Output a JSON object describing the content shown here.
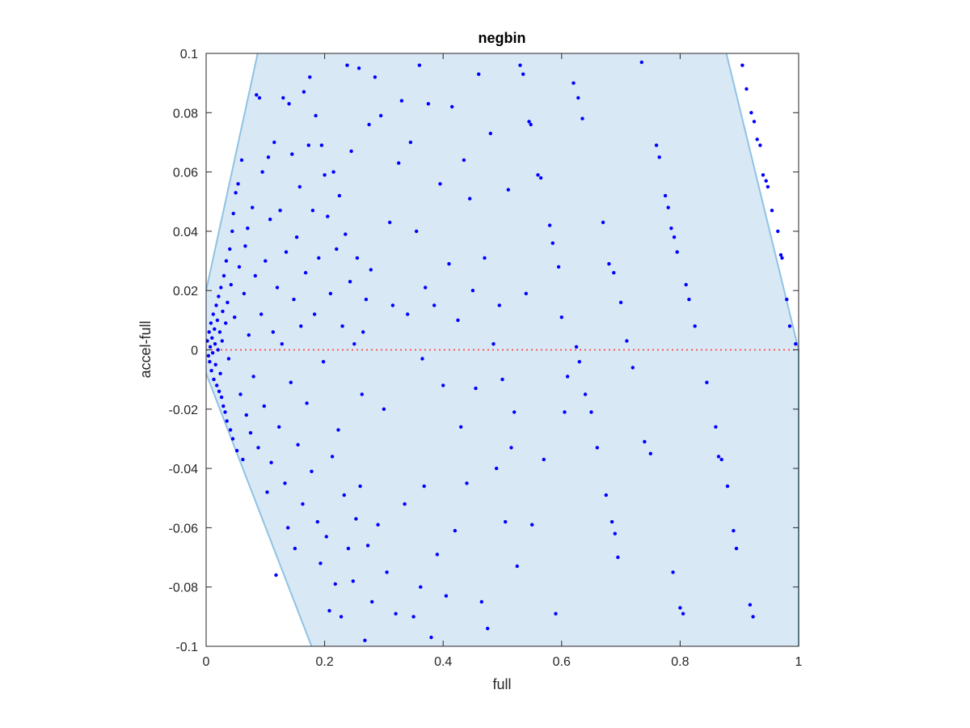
{
  "chart_data": {
    "type": "scatter",
    "title": "negbin",
    "xlabel": "full",
    "ylabel": "accel-full",
    "xlim": [
      0,
      1
    ],
    "ylim": [
      -0.1,
      0.1
    ],
    "x_ticks": [
      0,
      0.2,
      0.4,
      0.6,
      0.8,
      1
    ],
    "x_tick_labels": [
      "0",
      "0.2",
      "0.4",
      "0.6",
      "0.8",
      "1"
    ],
    "y_ticks": [
      -0.1,
      -0.08,
      -0.06,
      -0.04,
      -0.02,
      0,
      0.02,
      0.04,
      0.06,
      0.08,
      0.1
    ],
    "y_tick_labels": [
      "-0.1",
      "-0.08",
      "-0.06",
      "-0.04",
      "-0.02",
      "0",
      "0.02",
      "0.04",
      "0.06",
      "0.08",
      "0.1"
    ],
    "grid": false,
    "region": {
      "polygon": [
        [
          0,
          0.02
        ],
        [
          0.087,
          0.1
        ],
        [
          0.878,
          0.1
        ],
        [
          1,
          0
        ],
        [
          1,
          -0.1
        ],
        [
          0.178,
          -0.1
        ],
        [
          0,
          -0.008
        ]
      ],
      "fill": "#d9e8f5",
      "edge": "#8fc3e3"
    },
    "reference_line": {
      "y": 0,
      "color": "#ff3333",
      "style": "dotted"
    },
    "marker_color": "#0000ff",
    "points": [
      [
        0.002,
        0.003
      ],
      [
        0.004,
        -0.002
      ],
      [
        0.005,
        0.006
      ],
      [
        0.006,
        -0.004
      ],
      [
        0.007,
        0.001
      ],
      [
        0.008,
        0.009
      ],
      [
        0.009,
        -0.007
      ],
      [
        0.01,
        0.004
      ],
      [
        0.011,
        -0.001
      ],
      [
        0.012,
        0.012
      ],
      [
        0.013,
        -0.01
      ],
      [
        0.014,
        0.007
      ],
      [
        0.015,
        0.002
      ],
      [
        0.016,
        -0.005
      ],
      [
        0.017,
        0.015
      ],
      [
        0.018,
        -0.012
      ],
      [
        0.019,
        0.01
      ],
      [
        0.02,
        0.0
      ],
      [
        0.021,
        0.018
      ],
      [
        0.022,
        -0.014
      ],
      [
        0.023,
        0.006
      ],
      [
        0.024,
        -0.008
      ],
      [
        0.025,
        0.021
      ],
      [
        0.026,
        -0.016
      ],
      [
        0.027,
        0.003
      ],
      [
        0.028,
        0.013
      ],
      [
        0.029,
        -0.019
      ],
      [
        0.03,
        0.025
      ],
      [
        0.032,
        -0.021
      ],
      [
        0.033,
        0.009
      ],
      [
        0.034,
        0.03
      ],
      [
        0.035,
        -0.024
      ],
      [
        0.036,
        0.016
      ],
      [
        0.038,
        -0.003
      ],
      [
        0.04,
        0.034
      ],
      [
        0.041,
        -0.027
      ],
      [
        0.042,
        0.022
      ],
      [
        0.044,
        0.04
      ],
      [
        0.045,
        -0.03
      ],
      [
        0.046,
        0.046
      ],
      [
        0.048,
        0.011
      ],
      [
        0.05,
        0.053
      ],
      [
        0.052,
        -0.034
      ],
      [
        0.054,
        0.056
      ],
      [
        0.056,
        0.028
      ],
      [
        0.058,
        -0.015
      ],
      [
        0.06,
        0.064
      ],
      [
        0.062,
        -0.037
      ],
      [
        0.064,
        0.019
      ],
      [
        0.066,
        0.035
      ],
      [
        0.068,
        -0.022
      ],
      [
        0.07,
        0.041
      ],
      [
        0.072,
        0.005
      ],
      [
        0.075,
        -0.028
      ],
      [
        0.078,
        0.048
      ],
      [
        0.08,
        -0.009
      ],
      [
        0.083,
        0.025
      ],
      [
        0.085,
        0.086
      ],
      [
        0.088,
        -0.033
      ],
      [
        0.09,
        0.085
      ],
      [
        0.093,
        0.012
      ],
      [
        0.095,
        0.06
      ],
      [
        0.098,
        -0.019
      ],
      [
        0.1,
        0.03
      ],
      [
        0.103,
        -0.048
      ],
      [
        0.105,
        0.065
      ],
      [
        0.108,
        0.044
      ],
      [
        0.11,
        -0.038
      ],
      [
        0.113,
        0.006
      ],
      [
        0.115,
        0.07
      ],
      [
        0.118,
        -0.076
      ],
      [
        0.12,
        0.021
      ],
      [
        0.123,
        -0.026
      ],
      [
        0.125,
        0.047
      ],
      [
        0.128,
        0.002
      ],
      [
        0.13,
        0.085
      ],
      [
        0.133,
        -0.045
      ],
      [
        0.135,
        0.033
      ],
      [
        0.138,
        -0.06
      ],
      [
        0.14,
        0.083
      ],
      [
        0.143,
        -0.011
      ],
      [
        0.145,
        0.066
      ],
      [
        0.148,
        0.017
      ],
      [
        0.15,
        -0.067
      ],
      [
        0.153,
        0.038
      ],
      [
        0.155,
        -0.032
      ],
      [
        0.158,
        0.055
      ],
      [
        0.16,
        0.008
      ],
      [
        0.163,
        -0.052
      ],
      [
        0.165,
        0.087
      ],
      [
        0.168,
        0.026
      ],
      [
        0.17,
        -0.018
      ],
      [
        0.173,
        0.069
      ],
      [
        0.175,
        0.092
      ],
      [
        0.178,
        -0.041
      ],
      [
        0.18,
        0.047
      ],
      [
        0.183,
        0.012
      ],
      [
        0.185,
        0.079
      ],
      [
        0.188,
        -0.058
      ],
      [
        0.19,
        0.031
      ],
      [
        0.193,
        -0.072
      ],
      [
        0.195,
        0.069
      ],
      [
        0.198,
        -0.004
      ],
      [
        0.2,
        0.059
      ],
      [
        0.203,
        -0.063
      ],
      [
        0.205,
        0.045
      ],
      [
        0.208,
        -0.088
      ],
      [
        0.21,
        0.019
      ],
      [
        0.213,
        -0.036
      ],
      [
        0.215,
        0.06
      ],
      [
        0.218,
        -0.079
      ],
      [
        0.22,
        0.034
      ],
      [
        0.223,
        -0.027
      ],
      [
        0.225,
        0.052
      ],
      [
        0.228,
        -0.09
      ],
      [
        0.23,
        0.008
      ],
      [
        0.233,
        -0.049
      ],
      [
        0.235,
        0.039
      ],
      [
        0.238,
        0.096
      ],
      [
        0.24,
        -0.067
      ],
      [
        0.243,
        0.023
      ],
      [
        0.245,
        0.067
      ],
      [
        0.248,
        -0.078
      ],
      [
        0.25,
        0.002
      ],
      [
        0.253,
        -0.057
      ],
      [
        0.255,
        0.031
      ],
      [
        0.258,
        0.095
      ],
      [
        0.26,
        -0.046
      ],
      [
        0.263,
        -0.015
      ],
      [
        0.265,
        0.006
      ],
      [
        0.268,
        -0.098
      ],
      [
        0.27,
        0.017
      ],
      [
        0.273,
        -0.066
      ],
      [
        0.275,
        0.076
      ],
      [
        0.278,
        0.027
      ],
      [
        0.28,
        -0.085
      ],
      [
        0.285,
        0.092
      ],
      [
        0.29,
        -0.059
      ],
      [
        0.295,
        0.079
      ],
      [
        0.3,
        -0.02
      ],
      [
        0.305,
        -0.075
      ],
      [
        0.31,
        0.043
      ],
      [
        0.315,
        0.015
      ],
      [
        0.32,
        -0.089
      ],
      [
        0.325,
        0.063
      ],
      [
        0.33,
        0.084
      ],
      [
        0.335,
        -0.052
      ],
      [
        0.34,
        0.012
      ],
      [
        0.345,
        0.07
      ],
      [
        0.35,
        -0.09
      ],
      [
        0.355,
        0.04
      ],
      [
        0.36,
        0.096
      ],
      [
        0.362,
        -0.08
      ],
      [
        0.365,
        -0.003
      ],
      [
        0.368,
        -0.046
      ],
      [
        0.37,
        0.021
      ],
      [
        0.375,
        0.083
      ],
      [
        0.38,
        -0.097
      ],
      [
        0.385,
        0.015
      ],
      [
        0.39,
        -0.069
      ],
      [
        0.395,
        0.056
      ],
      [
        0.4,
        -0.012
      ],
      [
        0.405,
        -0.083
      ],
      [
        0.41,
        0.029
      ],
      [
        0.415,
        0.082
      ],
      [
        0.42,
        -0.061
      ],
      [
        0.425,
        0.01
      ],
      [
        0.43,
        -0.026
      ],
      [
        0.435,
        0.064
      ],
      [
        0.44,
        -0.045
      ],
      [
        0.445,
        0.051
      ],
      [
        0.45,
        0.02
      ],
      [
        0.455,
        -0.013
      ],
      [
        0.46,
        0.093
      ],
      [
        0.465,
        -0.085
      ],
      [
        0.47,
        0.031
      ],
      [
        0.475,
        -0.094
      ],
      [
        0.48,
        0.073
      ],
      [
        0.485,
        0.002
      ],
      [
        0.49,
        -0.04
      ],
      [
        0.495,
        0.015
      ],
      [
        0.5,
        -0.01
      ],
      [
        0.505,
        -0.058
      ],
      [
        0.51,
        0.054
      ],
      [
        0.515,
        -0.033
      ],
      [
        0.52,
        -0.021
      ],
      [
        0.525,
        -0.073
      ],
      [
        0.53,
        0.096
      ],
      [
        0.535,
        0.093
      ],
      [
        0.54,
        0.019
      ],
      [
        0.545,
        0.077
      ],
      [
        0.548,
        0.076
      ],
      [
        0.55,
        -0.059
      ],
      [
        0.56,
        0.059
      ],
      [
        0.565,
        0.058
      ],
      [
        0.57,
        -0.037
      ],
      [
        0.58,
        0.042
      ],
      [
        0.585,
        0.036
      ],
      [
        0.59,
        -0.089
      ],
      [
        0.595,
        0.028
      ],
      [
        0.6,
        0.011
      ],
      [
        0.605,
        -0.021
      ],
      [
        0.61,
        -0.009
      ],
      [
        0.62,
        0.09
      ],
      [
        0.625,
        0.001
      ],
      [
        0.628,
        0.085
      ],
      [
        0.63,
        -0.004
      ],
      [
        0.635,
        0.078
      ],
      [
        0.64,
        -0.015
      ],
      [
        0.65,
        -0.021
      ],
      [
        0.66,
        -0.033
      ],
      [
        0.67,
        0.043
      ],
      [
        0.675,
        -0.049
      ],
      [
        0.68,
        0.029
      ],
      [
        0.685,
        -0.058
      ],
      [
        0.688,
        0.026
      ],
      [
        0.69,
        -0.062
      ],
      [
        0.695,
        -0.07
      ],
      [
        0.7,
        0.016
      ],
      [
        0.71,
        0.003
      ],
      [
        0.72,
        -0.006
      ],
      [
        0.735,
        0.097
      ],
      [
        0.74,
        -0.031
      ],
      [
        0.75,
        -0.035
      ],
      [
        0.76,
        0.069
      ],
      [
        0.765,
        0.065
      ],
      [
        0.775,
        0.052
      ],
      [
        0.78,
        0.048
      ],
      [
        0.785,
        0.041
      ],
      [
        0.788,
        -0.075
      ],
      [
        0.79,
        0.038
      ],
      [
        0.795,
        0.033
      ],
      [
        0.8,
        -0.087
      ],
      [
        0.805,
        -0.089
      ],
      [
        0.81,
        0.022
      ],
      [
        0.815,
        0.017
      ],
      [
        0.825,
        0.008
      ],
      [
        0.845,
        -0.011
      ],
      [
        0.86,
        -0.026
      ],
      [
        0.865,
        -0.036
      ],
      [
        0.87,
        -0.037
      ],
      [
        0.88,
        -0.046
      ],
      [
        0.89,
        -0.061
      ],
      [
        0.895,
        -0.067
      ],
      [
        0.905,
        0.096
      ],
      [
        0.912,
        0.088
      ],
      [
        0.918,
        -0.086
      ],
      [
        0.92,
        0.08
      ],
      [
        0.923,
        -0.09
      ],
      [
        0.925,
        0.077
      ],
      [
        0.93,
        0.071
      ],
      [
        0.935,
        0.069
      ],
      [
        0.94,
        0.059
      ],
      [
        0.945,
        0.057
      ],
      [
        0.948,
        0.055
      ],
      [
        0.955,
        0.047
      ],
      [
        0.965,
        0.04
      ],
      [
        0.97,
        0.032
      ],
      [
        0.972,
        0.031
      ],
      [
        0.98,
        0.017
      ],
      [
        0.985,
        0.008
      ],
      [
        0.995,
        0.002
      ]
    ]
  }
}
